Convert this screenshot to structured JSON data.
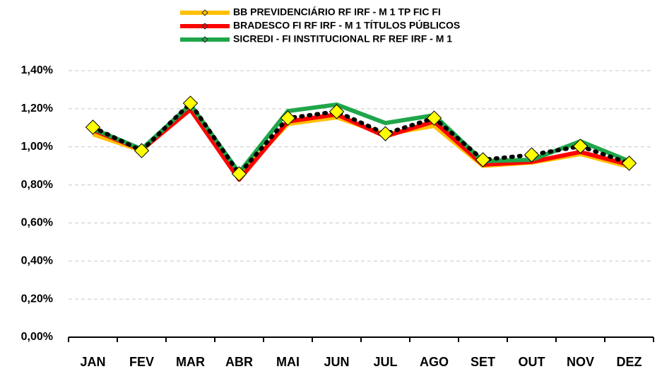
{
  "chart_data": {
    "type": "line",
    "categories": [
      "JAN",
      "FEV",
      "MAR",
      "ABR",
      "MAI",
      "JUN",
      "JUL",
      "AGO",
      "SET",
      "OUT",
      "NOV",
      "DEZ"
    ],
    "series": [
      {
        "name": "BB PREVIDENCIÁRIO RF IRF - M 1 TP FIC FI",
        "color": "#ffc000",
        "values": [
          1.066,
          0.98,
          1.214,
          0.85,
          1.12,
          1.155,
          1.066,
          1.11,
          0.9,
          0.917,
          0.962,
          0.895
        ]
      },
      {
        "name": "BRADESCO FI RF IRF - M 1 TÍTULOS PÚBLICOS",
        "color": "#ff0000",
        "values": [
          1.088,
          0.984,
          1.196,
          0.828,
          1.133,
          1.17,
          1.055,
          1.133,
          0.906,
          0.921,
          0.973,
          0.906
        ]
      },
      {
        "name": "SICREDI - FI INSTITUCIONAL RF REF IRF - M 1",
        "color": "#1fa64a",
        "values": [
          1.095,
          0.988,
          1.222,
          0.865,
          1.188,
          1.222,
          1.125,
          1.166,
          0.925,
          0.932,
          1.029,
          0.925
        ]
      },
      {
        "color": "#000000",
        "dash": "dotted",
        "marker_color": "#ffff00",
        "values": [
          1.103,
          0.98,
          1.229,
          0.858,
          1.151,
          1.185,
          1.069,
          1.151,
          0.932,
          0.958,
          1.003,
          0.914
        ]
      }
    ],
    "ylim": [
      0,
      1.4
    ],
    "yticks": [
      {
        "value": 0,
        "label": "0,00%"
      },
      {
        "value": 0.2,
        "label": "0,20%"
      },
      {
        "value": 0.4,
        "label": "0,40%"
      },
      {
        "value": 0.6,
        "label": "0,60%"
      },
      {
        "value": 0.8,
        "label": "0,80%"
      },
      {
        "value": 1.0,
        "label": "1,00%"
      },
      {
        "value": 1.2,
        "label": "1,20%"
      },
      {
        "value": 1.4,
        "label": "1,40%"
      }
    ],
    "grid": true,
    "legend": "top"
  }
}
